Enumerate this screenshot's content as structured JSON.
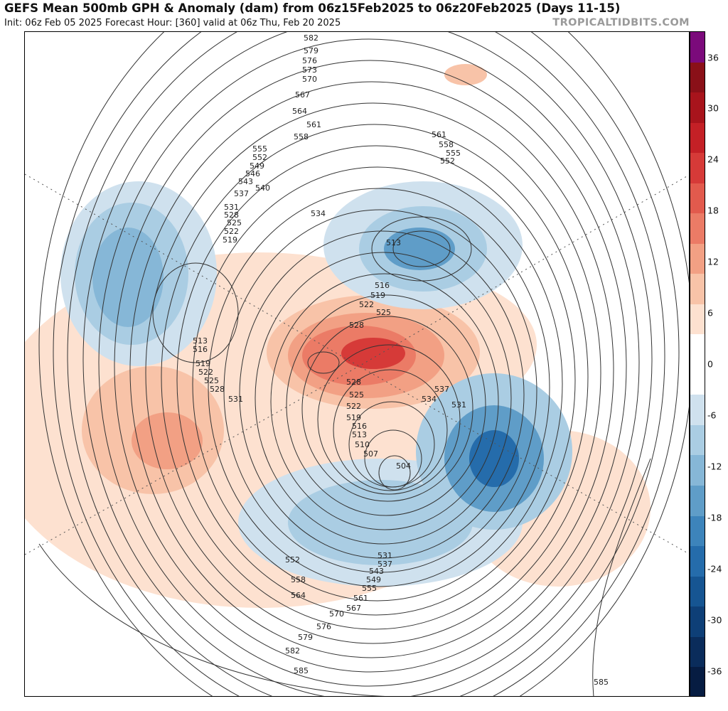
{
  "header": {
    "title": "GEFS Mean 500mb GPH & Anomaly (dam) from 06z15Feb2025 to 06z20Feb2025 (Days 11-15)",
    "subtitle": "Init: 06z Feb 05 2025   Forecast Hour: [360]   valid at 06z Thu, Feb 20 2025",
    "credit": "TROPICALTIDBITS.COM"
  },
  "colorbar": {
    "ticks": [
      "36",
      "30",
      "24",
      "18",
      "12",
      "6",
      "0",
      "-6",
      "-12",
      "-18",
      "-24",
      "-30",
      "-36"
    ],
    "colors": [
      "#7b0a7b",
      "#8a1018",
      "#a8141c",
      "#c42026",
      "#d63a38",
      "#e25a4d",
      "#eb7b66",
      "#f2a084",
      "#f8c3a8",
      "#fde1d0",
      "#ffffff",
      "#ffffff",
      "#cfe1ee",
      "#aacde3",
      "#86b7d7",
      "#5f9dc8",
      "#3d84bb",
      "#256cab",
      "#165592",
      "#0e3f77",
      "#0a2c5b",
      "#061c42"
    ]
  },
  "contour_labels": [
    "582",
    "579",
    "576",
    "573",
    "570",
    "567",
    "564",
    "561",
    "558",
    "555",
    "552",
    "549",
    "546",
    "543",
    "540",
    "537",
    "534",
    "531",
    "528",
    "525",
    "522",
    "519",
    "516",
    "513",
    "510",
    "507",
    "504",
    "585"
  ]
}
